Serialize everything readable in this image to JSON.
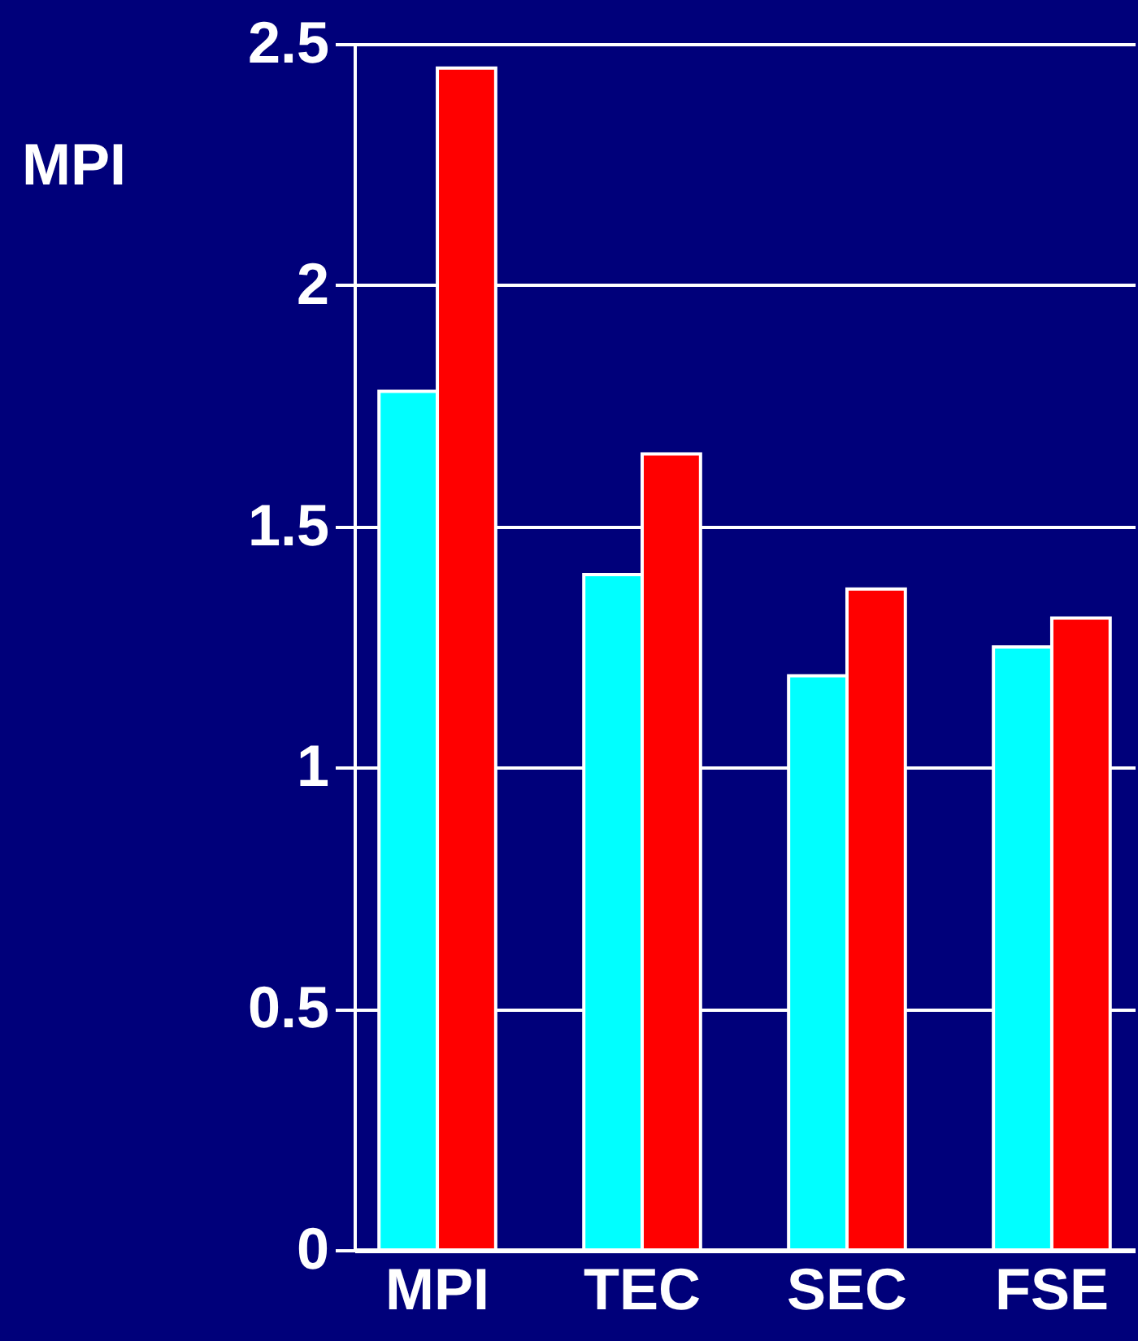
{
  "chart_data": {
    "type": "bar",
    "ylabel": "MPI",
    "categories": [
      "MPI",
      "TEC",
      "SEC",
      "FSE"
    ],
    "series": [
      {
        "color": "#00ffff",
        "values": [
          1.78,
          1.4,
          1.19,
          1.25
        ]
      },
      {
        "color": "#ff0000",
        "values": [
          2.45,
          1.65,
          1.37,
          1.31
        ]
      }
    ],
    "ylim": [
      0,
      2.5
    ],
    "yticks": [
      0,
      0.5,
      1,
      1.5,
      2,
      2.5
    ],
    "grid": "y",
    "legend": false
  }
}
